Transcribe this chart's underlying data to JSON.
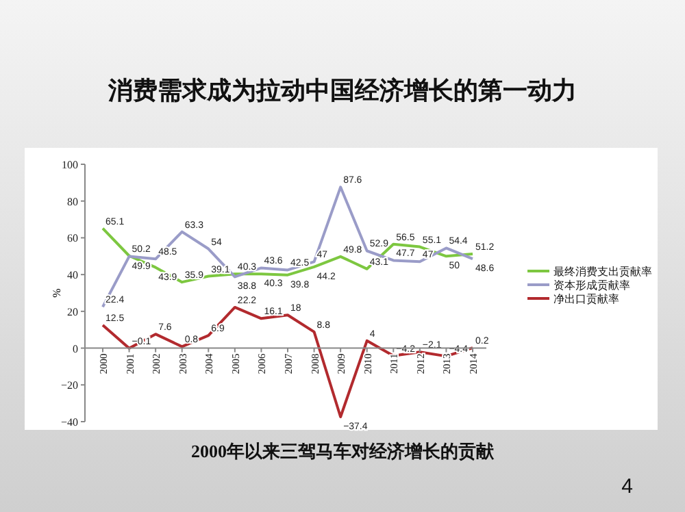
{
  "chart_data": {
    "type": "line",
    "title": "消费需求成为拉动中国经济增长的第一动力",
    "annotations": [
      "2000年以来三驾马车对经济增长的贡献",
      "4"
    ],
    "categories": [
      "2000",
      "2001",
      "2002",
      "2003",
      "2004",
      "2005",
      "2006",
      "2007",
      "2008",
      "2009",
      "2010",
      "2011",
      "2012",
      "2013",
      "2014"
    ],
    "ylabel": "%",
    "ylim": [
      -40,
      100
    ],
    "yticks": [
      -40,
      -20,
      0,
      20,
      40,
      60,
      80,
      100
    ],
    "series": [
      {
        "name": "最终消费支出贡献率",
        "color": "#7dc740",
        "values": [
          65.1,
          50.2,
          43.9,
          35.9,
          39.1,
          40.3,
          40.3,
          39.8,
          44.2,
          49.8,
          43.1,
          56.5,
          55.1,
          50,
          51.2
        ]
      },
      {
        "name": "资本形成贡献率",
        "color": "#9a9cc8",
        "values": [
          22.4,
          49.9,
          48.5,
          63.3,
          54,
          38.8,
          43.6,
          42.5,
          47,
          87.6,
          52.9,
          47.7,
          47,
          54.4,
          48.6
        ]
      },
      {
        "name": "净出口贡献率",
        "color": "#b22a2e",
        "values": [
          12.5,
          -0.1,
          7.6,
          0.8,
          6.9,
          22.2,
          16.1,
          18,
          8.8,
          -37.4,
          4,
          -4.2,
          -2.1,
          -4.4,
          0.2
        ]
      }
    ],
    "data_labels": true,
    "legend": "right",
    "marker": "none",
    "line_style": "solid"
  }
}
